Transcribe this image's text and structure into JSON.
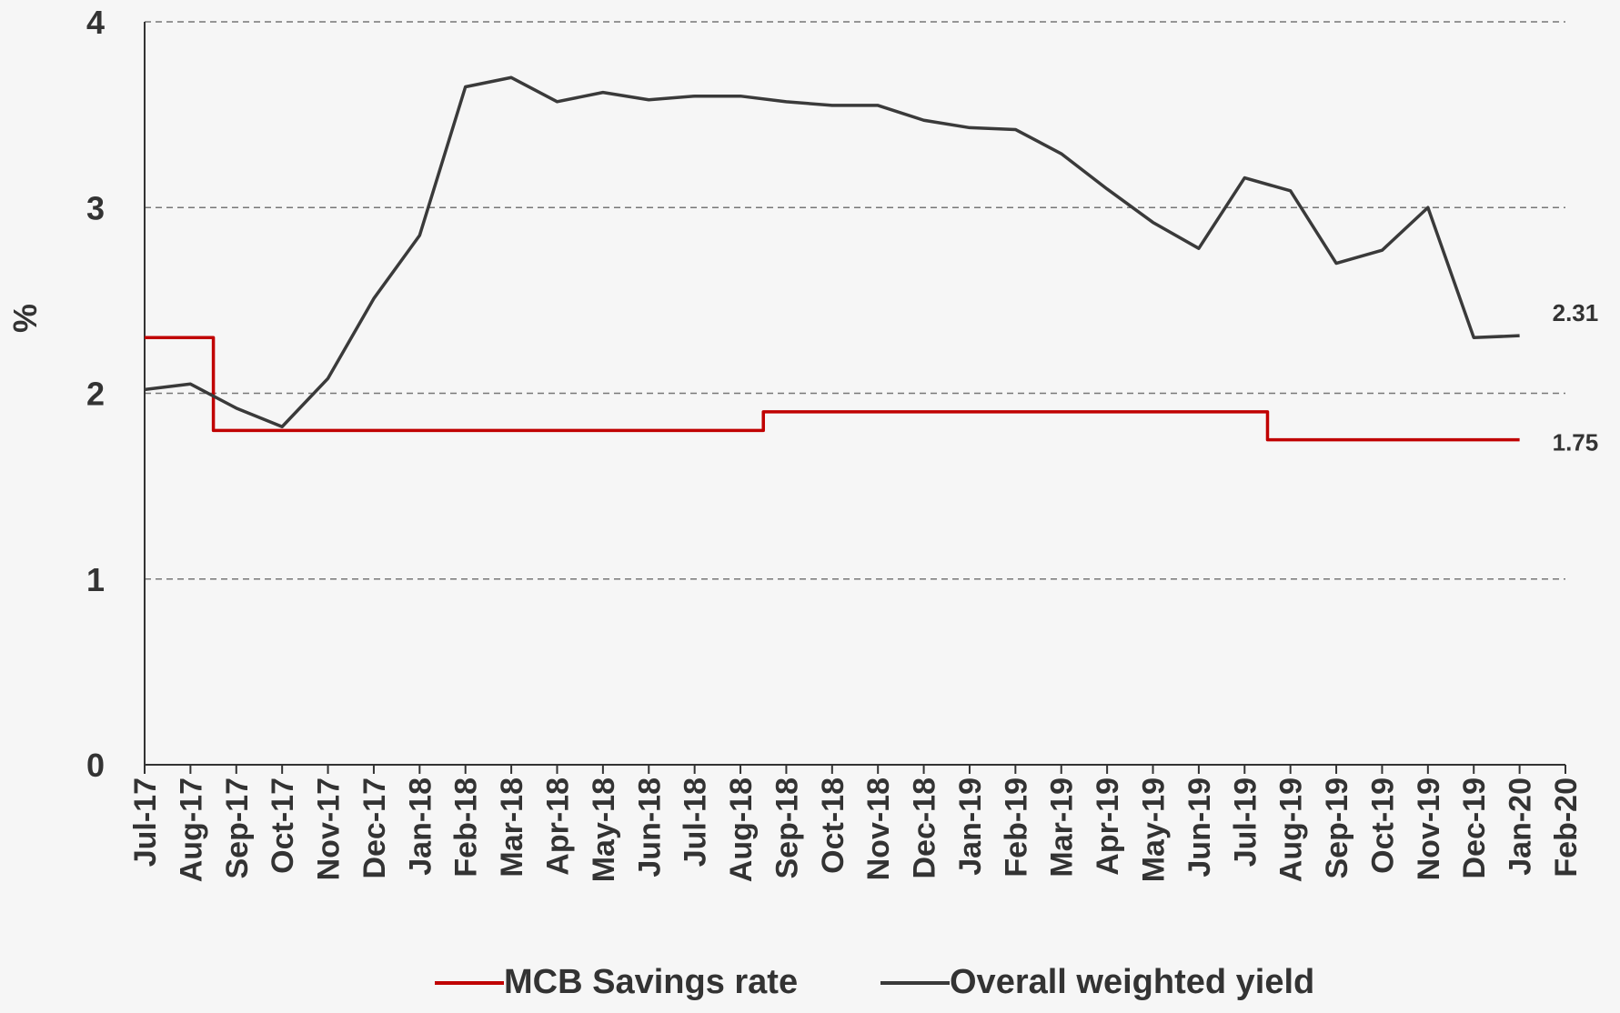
{
  "chart_data": {
    "type": "line",
    "y_label": "%",
    "categories": [
      "Jul-17",
      "Aug-17",
      "Sep-17",
      "Oct-17",
      "Nov-17",
      "Dec-17",
      "Jan-18",
      "Feb-18",
      "Mar-18",
      "Apr-18",
      "May-18",
      "Jun-18",
      "Jul-18",
      "Aug-18",
      "Sep-18",
      "Oct-18",
      "Nov-18",
      "Dec-18",
      "Jan-19",
      "Feb-19",
      "Mar-19",
      "Apr-19",
      "May-19",
      "Jun-19",
      "Jul-19",
      "Aug-19",
      "Sep-19",
      "Oct-19",
      "Nov-19",
      "Dec-19",
      "Jan-20",
      "Feb-20"
    ],
    "series": [
      {
        "name": "MCB Savings rate",
        "color": "#c00000",
        "step": "mid",
        "values": [
          2.3,
          2.3,
          1.8,
          1.8,
          1.8,
          1.8,
          1.8,
          1.8,
          1.8,
          1.8,
          1.8,
          1.8,
          1.8,
          1.8,
          1.9,
          1.9,
          1.9,
          1.9,
          1.9,
          1.9,
          1.9,
          1.9,
          1.9,
          1.9,
          1.9,
          1.75,
          1.75,
          1.75,
          1.75,
          1.75,
          1.75,
          null
        ]
      },
      {
        "name": "Overall weighted yield",
        "color": "#3a3a3a",
        "values": [
          2.02,
          2.05,
          1.92,
          1.82,
          2.08,
          2.51,
          2.85,
          3.65,
          3.7,
          3.57,
          3.62,
          3.58,
          3.6,
          3.6,
          3.57,
          3.55,
          3.55,
          3.47,
          3.43,
          3.42,
          3.29,
          3.1,
          2.92,
          2.78,
          3.16,
          3.09,
          2.7,
          2.77,
          3.0,
          2.3,
          2.31,
          null
        ]
      }
    ],
    "ylim": [
      0,
      4
    ],
    "yticks": [
      0,
      1,
      2,
      3,
      4
    ],
    "grid": true,
    "legend": "bottom"
  }
}
